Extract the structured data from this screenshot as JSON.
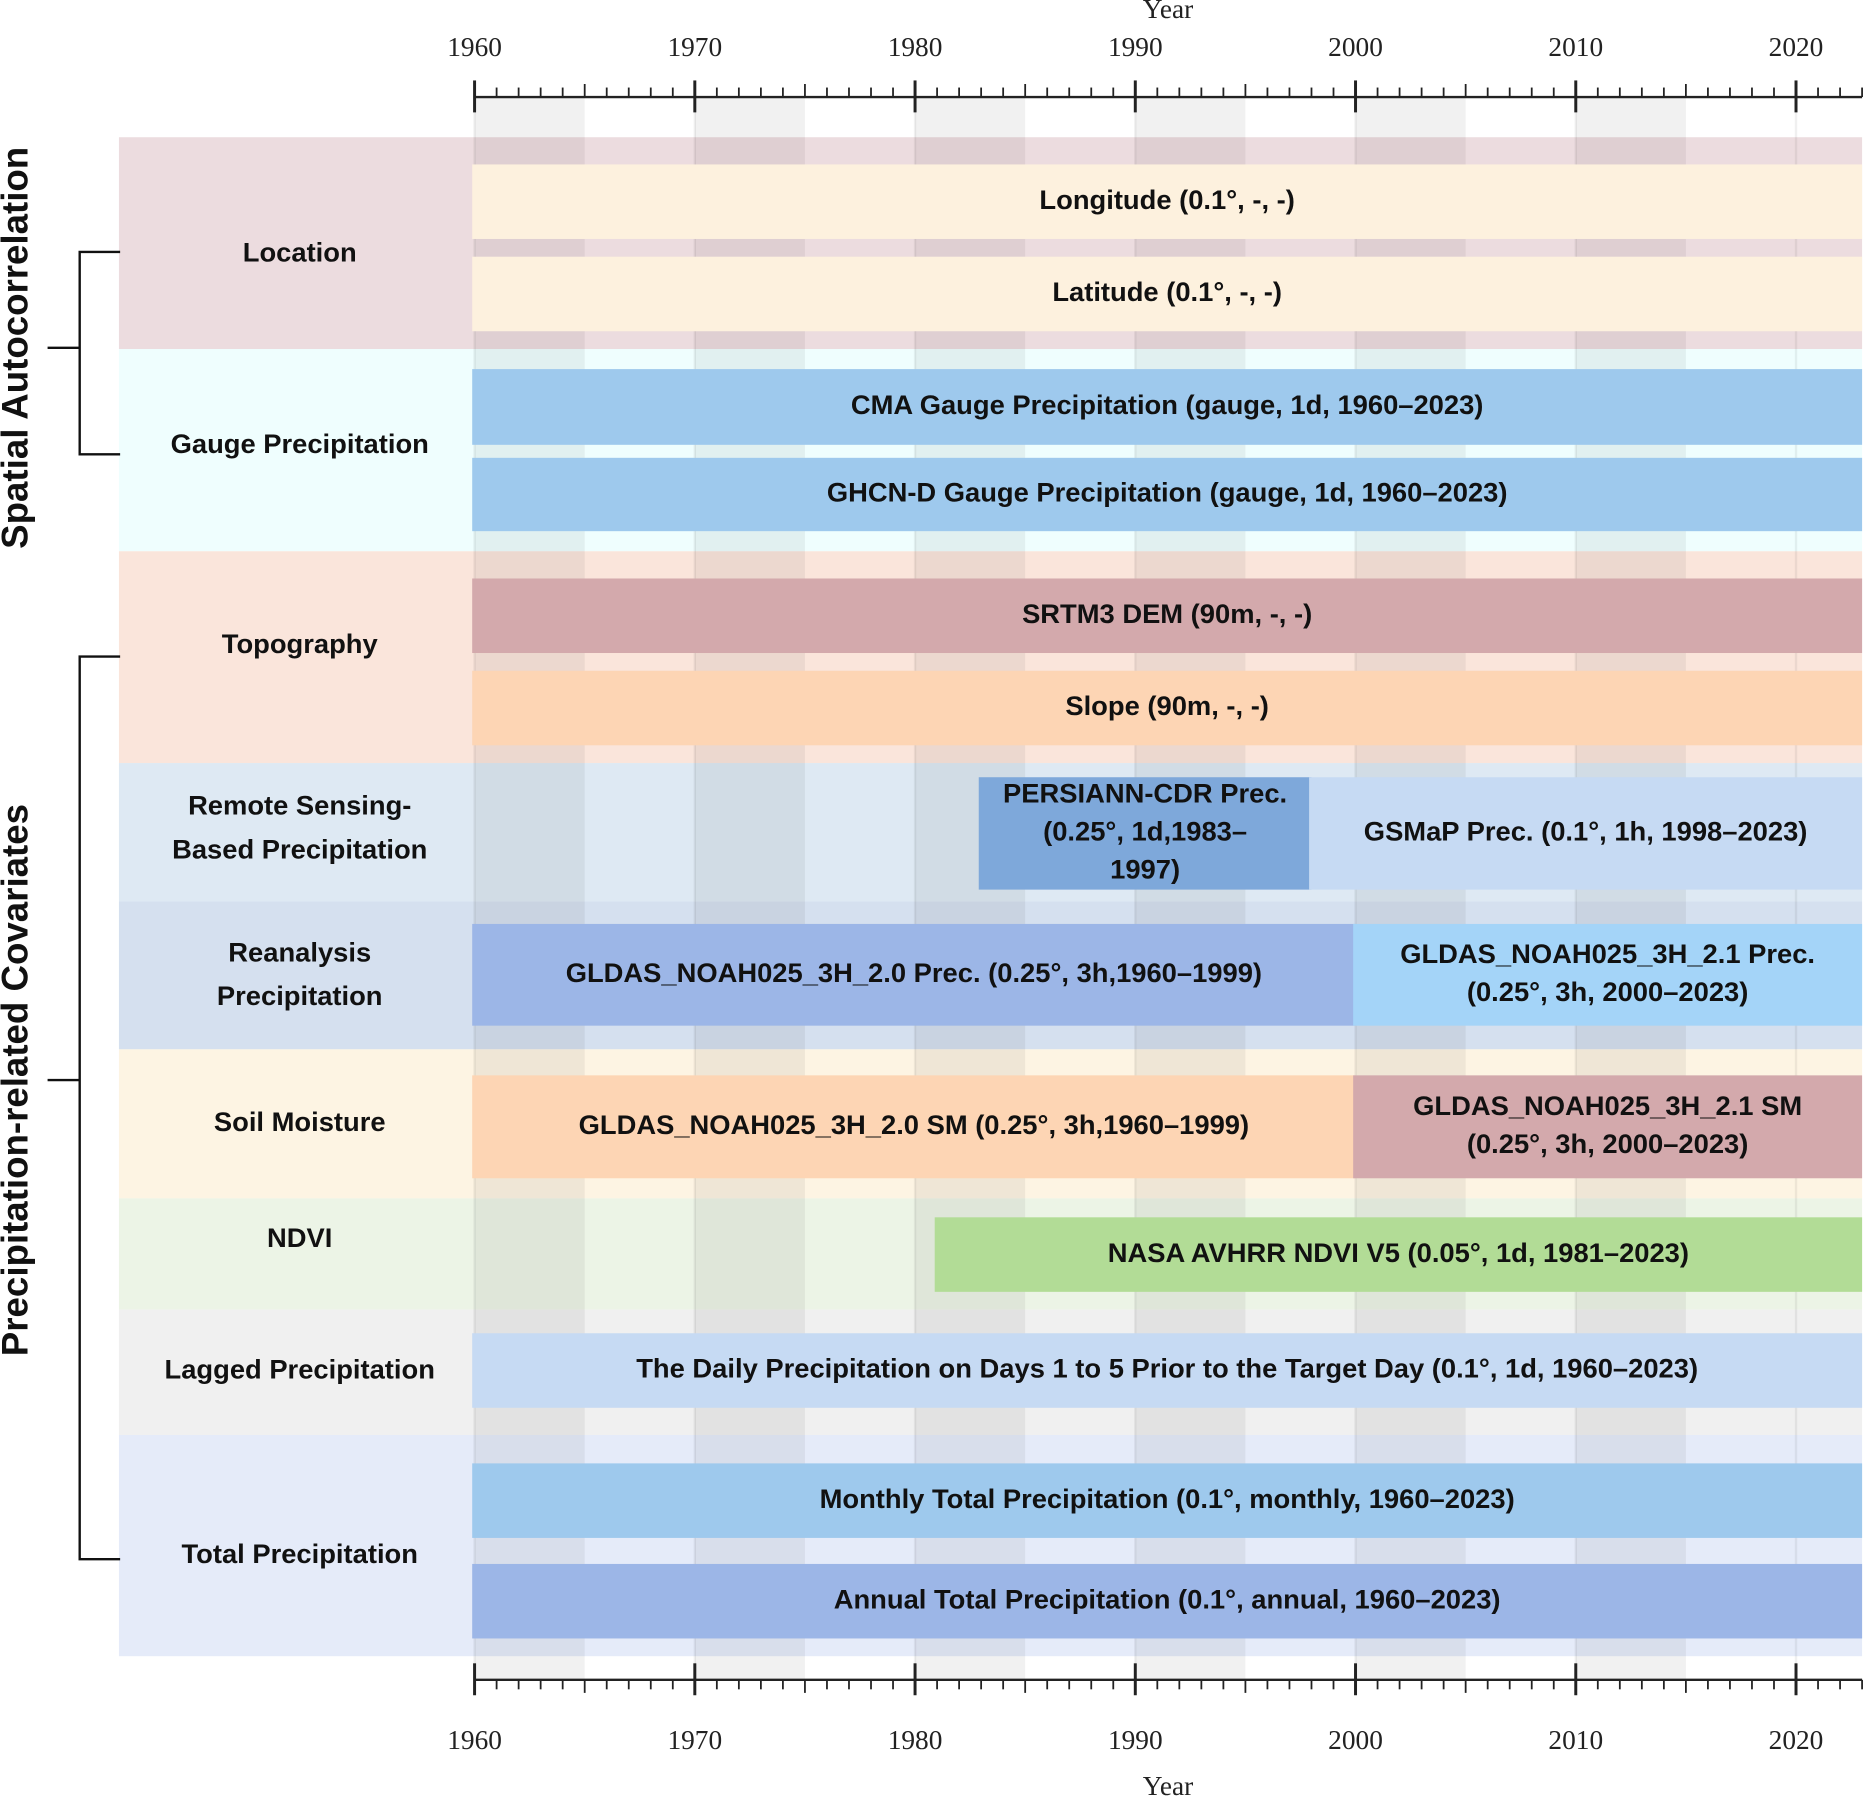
{
  "chart_data": {
    "type": "timeline",
    "x_label": "Year",
    "xlim": [
      1960,
      2023
    ],
    "xticks": [
      1960,
      1970,
      1980,
      1990,
      2000,
      2010,
      2020
    ],
    "categories": [
      {
        "label": "Spatial Autocorrelation",
        "groups": [
          {
            "label": "Location",
            "color": "#ecdcdf",
            "rows": [
              [
                {
                  "label": "Longitude (0.1°, -, -)",
                  "start": 1960,
                  "end": 2023,
                  "color": "#fdf1de"
                }
              ],
              [
                {
                  "label": "Latitude (0.1°, -, -)",
                  "start": 1960,
                  "end": 2023,
                  "color": "#fdf1de"
                }
              ]
            ]
          },
          {
            "label": "Gauge Precipitation",
            "color": "#effefe",
            "rows": [
              [
                {
                  "label": "CMA Gauge Precipitation (gauge, 1d, 1960–2023)",
                  "start": 1960,
                  "end": 2023,
                  "color": "#9ec9ed"
                }
              ],
              [
                {
                  "label": "GHCN-D Gauge Precipitation (gauge, 1d, 1960–2023)",
                  "start": 1960,
                  "end": 2023,
                  "color": "#9ec9ed"
                }
              ]
            ]
          }
        ]
      },
      {
        "label": "Precipitation-related Covariates",
        "groups": [
          {
            "label": "Topography",
            "color": "#fae5db",
            "rows": [
              [
                {
                  "label": "SRTM3 DEM (90m, -, -)",
                  "start": 1960,
                  "end": 2023,
                  "color": "#d3a9ac"
                }
              ],
              [
                {
                  "label": "Slope (90m, -, -)",
                  "start": 1960,
                  "end": 2023,
                  "color": "#fdd5b4"
                }
              ]
            ]
          },
          {
            "label": [
              "Remote Sensing-",
              "Based Precipitation"
            ],
            "color": "#dee9f3",
            "rows": [
              [
                {
                  "label": [
                    "PERSIANN-CDR Prec.",
                    "(0.25°, 1d,1983–",
                    "1997)"
                  ],
                  "start": 1983,
                  "end": 1998,
                  "color": "#7ea8da"
                },
                {
                  "label": "GSMaP Prec. (0.1°, 1h, 1998–2023)",
                  "start": 1998,
                  "end": 2023,
                  "color": "#c6daf3"
                }
              ]
            ]
          },
          {
            "label": [
              "Reanalysis",
              "Precipitation"
            ],
            "color": "#d5e0ef",
            "rows": [
              [
                {
                  "label": "GLDAS_NOAH025_3H_2.0 Prec. (0.25°, 3h,1960–1999)",
                  "start": 1960,
                  "end": 2000,
                  "color": "#9cb6e7"
                },
                {
                  "label": [
                    "GLDAS_NOAH025_3H_2.1 Prec.",
                    "(0.25°, 3h, 2000–2023)"
                  ],
                  "start": 2000,
                  "end": 2023,
                  "color": "#a4d4f8"
                }
              ]
            ]
          },
          {
            "label": "Soil Moisture",
            "color": "#fdf4e3",
            "rows": [
              [
                {
                  "label": "GLDAS_NOAH025_3H_2.0 SM (0.25°, 3h,1960–1999)",
                  "start": 1960,
                  "end": 2000,
                  "color": "#fdd5b4"
                },
                {
                  "label": [
                    "GLDAS_NOAH025_3H_2.1 SM",
                    "(0.25°, 3h, 2000–2023)"
                  ],
                  "start": 2000,
                  "end": 2023,
                  "color": "#d3a9ac"
                }
              ]
            ]
          },
          {
            "label": "NDVI",
            "color": "#ecf4e6",
            "rows": [
              [
                {
                  "label": "NASA AVHRR NDVI V5 (0.05°, 1d, 1981–2023)",
                  "start": 1981,
                  "end": 2023,
                  "color": "#b2dc96"
                }
              ]
            ]
          },
          {
            "label": "Lagged Precipitation",
            "color": "#f0f0f0",
            "rows": [
              [
                {
                  "label": "The Daily Precipitation on Days 1 to 5 Prior to the Target Day (0.1°, 1d, 1960–2023)",
                  "start": 1960,
                  "end": 2023,
                  "color": "#c6daf3"
                }
              ]
            ]
          },
          {
            "label": "Total Precipitation",
            "color": "#e5ebf9",
            "rows": [
              [
                {
                  "label": "Monthly Total Precipitation (0.1°, monthly, 1960–2023)",
                  "start": 1960,
                  "end": 2023,
                  "color": "#9ec9ed"
                }
              ],
              [
                {
                  "label": "Annual Total Precipitation (0.1°, annual, 1960–2023)",
                  "start": 1960,
                  "end": 2023,
                  "color": "#9cb6e7"
                }
              ]
            ]
          }
        ]
      }
    ]
  }
}
